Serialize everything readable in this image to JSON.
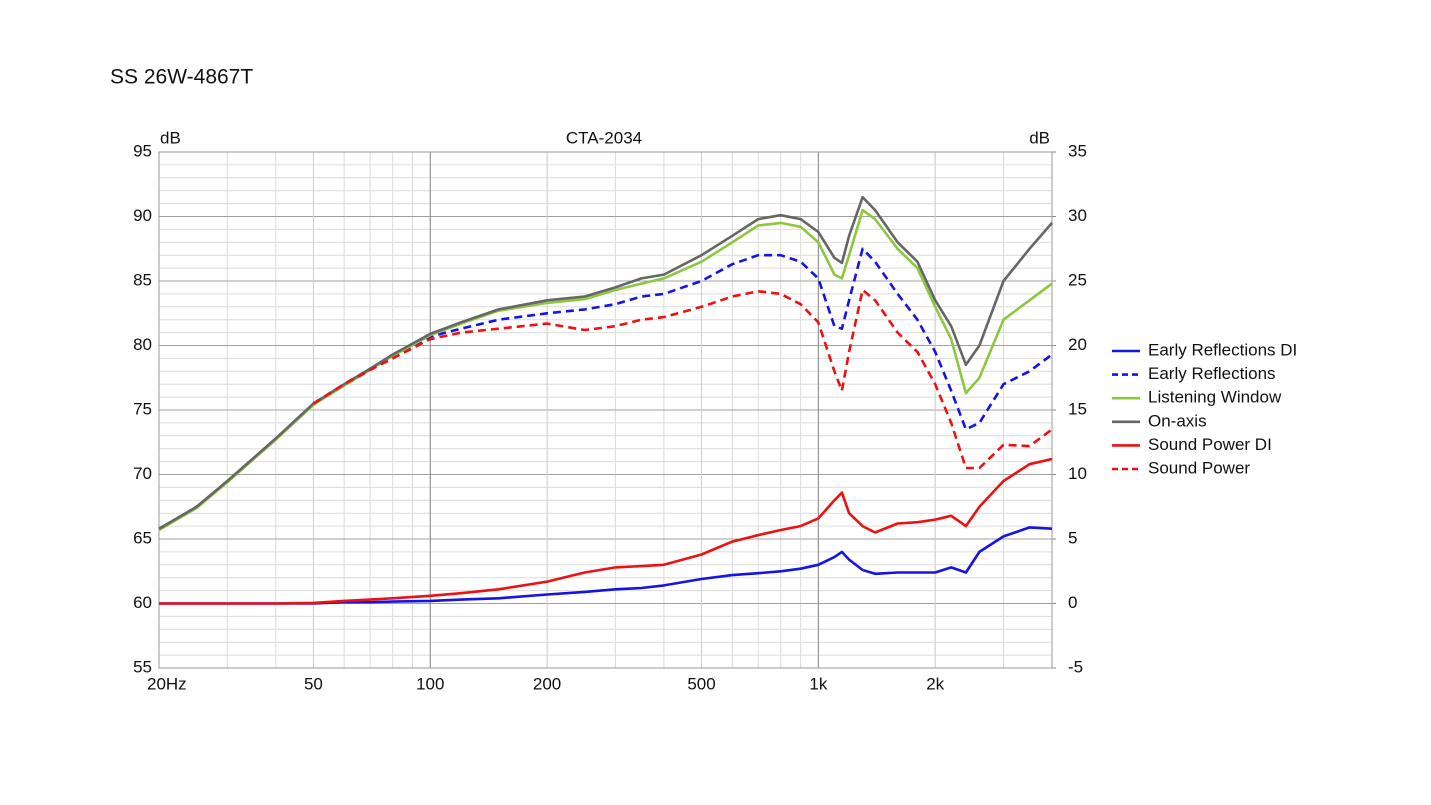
{
  "page_title": "SS 26W-4867T",
  "chart_data": {
    "type": "line",
    "title": "CTA-2034",
    "ylabel": "dB",
    "y2label": "dB",
    "x": [
      20,
      25,
      30,
      40,
      50,
      60,
      70,
      80,
      100,
      120,
      150,
      200,
      250,
      300,
      350,
      400,
      500,
      600,
      700,
      800,
      900,
      1000,
      1100,
      1150,
      1200,
      1300,
      1400,
      1600,
      1800,
      2000,
      2200,
      2400,
      2600,
      3000,
      3500,
      4000
    ],
    "xlim": [
      20,
      4000
    ],
    "xlog": true,
    "xticks": [
      {
        "value": 20,
        "label": "20Hz"
      },
      50,
      100,
      200,
      500,
      {
        "value": 1000,
        "label": "1k"
      },
      {
        "value": 2000,
        "label": "2k"
      }
    ],
    "ylim": [
      55,
      95
    ],
    "yticks": [
      55,
      60,
      65,
      70,
      75,
      80,
      85,
      90,
      95
    ],
    "y2lim": [
      -5,
      35
    ],
    "y2ticks": [
      -5,
      0,
      5,
      10,
      15,
      20,
      25,
      30,
      35
    ],
    "grid": true,
    "minor_grid": true,
    "legend": "right",
    "series": [
      {
        "name": "Early Reflections DI",
        "color": "#1414e6",
        "dash": false,
        "axis": "y2",
        "values": [
          0,
          0,
          0,
          0,
          0,
          0.1,
          0.1,
          0.15,
          0.2,
          0.3,
          0.4,
          0.7,
          0.9,
          1.1,
          1.2,
          1.4,
          1.9,
          2.2,
          2.35,
          2.5,
          2.7,
          3.0,
          3.6,
          4.0,
          3.4,
          2.6,
          2.3,
          2.4,
          2.4,
          2.4,
          2.8,
          2.4,
          4.0,
          5.2,
          5.9,
          5.8
        ]
      },
      {
        "name": "Early Reflections",
        "color": "#1414e6",
        "dash": true,
        "values": [
          null,
          null,
          null,
          null,
          75.5,
          77.0,
          78.2,
          79.2,
          80.7,
          81.3,
          82.0,
          82.5,
          82.8,
          83.2,
          83.8,
          84.0,
          85.0,
          86.3,
          87.0,
          87.0,
          86.5,
          85.2,
          81.5,
          81.3,
          83.5,
          87.5,
          86.5,
          84.0,
          82.0,
          79.5,
          76.5,
          73.5,
          74.0,
          77.0,
          78.0,
          79.3
        ]
      },
      {
        "name": "Listening Window",
        "color": "#8dc63f",
        "dash": false,
        "values": [
          65.7,
          67.4,
          69.4,
          72.7,
          75.4,
          76.9,
          78.1,
          79.2,
          80.8,
          81.7,
          82.7,
          83.3,
          83.6,
          84.3,
          84.8,
          85.2,
          86.5,
          88.0,
          89.3,
          89.5,
          89.2,
          88.0,
          85.5,
          85.2,
          87.0,
          90.5,
          89.8,
          87.5,
          86.0,
          83.0,
          80.5,
          76.3,
          77.5,
          82.0,
          83.5,
          84.8
        ]
      },
      {
        "name": "On-axis",
        "color": "#666666",
        "dash": false,
        "values": [
          65.8,
          67.5,
          69.5,
          72.8,
          75.5,
          77.0,
          78.2,
          79.3,
          80.9,
          81.8,
          82.8,
          83.5,
          83.8,
          84.5,
          85.2,
          85.5,
          87.0,
          88.5,
          89.8,
          90.1,
          89.8,
          88.8,
          86.8,
          86.4,
          88.5,
          91.5,
          90.5,
          88.0,
          86.5,
          83.5,
          81.5,
          78.5,
          80.0,
          85.0,
          87.5,
          89.5
        ]
      },
      {
        "name": "Sound Power DI",
        "color": "#ee1111",
        "dash": false,
        "axis": "y2",
        "values": [
          0,
          0,
          0,
          0,
          0.05,
          0.2,
          0.3,
          0.4,
          0.6,
          0.8,
          1.1,
          1.7,
          2.4,
          2.8,
          2.9,
          3.0,
          3.8,
          4.8,
          5.3,
          5.7,
          6.0,
          6.6,
          8.0,
          8.6,
          7.0,
          6.0,
          5.5,
          6.2,
          6.3,
          6.5,
          6.8,
          6.0,
          7.5,
          9.5,
          10.8,
          11.2
        ]
      },
      {
        "name": "Sound Power",
        "color": "#ee1111",
        "dash": true,
        "values": [
          null,
          null,
          null,
          null,
          75.5,
          77.0,
          78.1,
          79.0,
          80.5,
          81.0,
          81.3,
          81.7,
          81.2,
          81.5,
          82.0,
          82.2,
          83.0,
          83.8,
          84.2,
          84.0,
          83.2,
          81.8,
          78.0,
          76.5,
          79.5,
          84.3,
          83.5,
          81.0,
          79.5,
          77.0,
          74.0,
          70.5,
          70.5,
          72.3,
          72.2,
          73.5
        ]
      }
    ]
  }
}
